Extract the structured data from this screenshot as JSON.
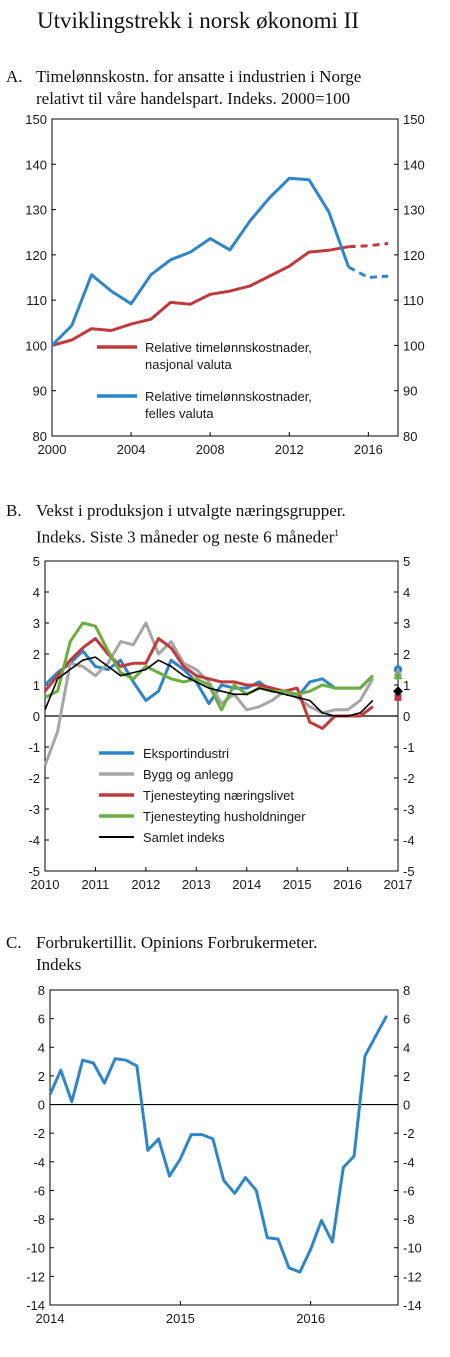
{
  "page_title": "Utviklingstrekk i norsk økonomi II",
  "colors": {
    "red": "#c0393b",
    "blue": "#2e86c9",
    "gray": "#a6a6a6",
    "green": "#6cae3e",
    "black": "#000000"
  },
  "chart_data": [
    {
      "id": "A",
      "type": "line",
      "letter": "A.",
      "title_line1": "Timelønnskostn. for ansatte i industrien i Norge",
      "title_line2": "relativt til våre handelspart. Indeks. 2000=100",
      "ylim": [
        80,
        150
      ],
      "yticks": [
        80,
        90,
        100,
        110,
        120,
        130,
        140,
        150
      ],
      "xlim": [
        2000,
        2017.5
      ],
      "xticks": [
        2000,
        2004,
        2008,
        2012,
        2016
      ],
      "legend": [
        "Relative timelønnskostnader, nasjonal valuta",
        "Relative timelønnskostnader, felles valuta"
      ],
      "legend_lines": [
        [
          "Relative timelønnskostnader,",
          "nasjonal valuta"
        ],
        [
          "Relative timelønnskostnader,",
          "felles valuta"
        ]
      ],
      "series": [
        {
          "name": "Relative timelønnskostnader, nasjonal valuta",
          "color": "red",
          "x": [
            2000,
            2001,
            2002,
            2003,
            2004,
            2005,
            2006,
            2007,
            2008,
            2009,
            2010,
            2011,
            2012,
            2013,
            2014,
            2015
          ],
          "values": [
            100,
            101.2,
            103.7,
            103.3,
            104.7,
            105.8,
            109.5,
            109.1,
            111.3,
            112,
            113.1,
            115.3,
            117.5,
            120.6,
            121,
            121.8
          ],
          "projection": {
            "x": [
              2015,
              2016,
              2017
            ],
            "values": [
              121.8,
              122,
              122.5
            ]
          }
        },
        {
          "name": "Relative timelønnskostnader, felles valuta",
          "color": "blue",
          "x": [
            2000,
            2001,
            2002,
            2003,
            2004,
            2005,
            2006,
            2007,
            2008,
            2009,
            2010,
            2011,
            2012,
            2013,
            2014,
            2015
          ],
          "values": [
            100,
            104.4,
            115.6,
            112,
            109.2,
            115.6,
            118.9,
            120.6,
            123.6,
            121.1,
            127.4,
            132.6,
            136.9,
            136.6,
            129.5,
            117.3
          ],
          "projection": {
            "x": [
              2015,
              2016,
              2017
            ],
            "values": [
              117.3,
              115,
              115.3
            ]
          }
        }
      ]
    },
    {
      "id": "B",
      "type": "line",
      "letter": "B.",
      "title_line1": "Vekst i produksjon i utvalgte næringsgrupper.",
      "title_line2": "Indeks. Siste 3 måneder og neste 6 måneder",
      "title_footnote": "1",
      "ylim": [
        -5,
        5
      ],
      "yticks": [
        -5,
        -4,
        -3,
        -2,
        -1,
        0,
        1,
        2,
        3,
        4,
        5
      ],
      "xlim": [
        2010,
        2017
      ],
      "xticks": [
        2010,
        2011,
        2012,
        2013,
        2014,
        2015,
        2016,
        2017
      ],
      "legend": [
        "Eksportindustri",
        "Bygg og anlegg",
        "Tjenesteyting næringslivet",
        "Tjenesteyting husholdninger",
        "Samlet indeks"
      ],
      "series": [
        {
          "name": "Eksportindustri",
          "color": "blue",
          "x": [
            2010,
            2010.25,
            2010.5,
            2010.75,
            2011,
            2011.25,
            2011.5,
            2011.75,
            2012,
            2012.25,
            2012.5,
            2012.75,
            2013,
            2013.25,
            2013.5,
            2013.75,
            2014,
            2014.25,
            2014.5,
            2014.75,
            2015,
            2015.25,
            2015.5,
            2015.75,
            2016,
            2016.25,
            2016.5
          ],
          "values": [
            1,
            1.4,
            1.7,
            2.1,
            1.6,
            1.5,
            1.8,
            1.1,
            0.5,
            0.8,
            1.8,
            1.5,
            1.1,
            0.4,
            1,
            0.9,
            0.9,
            1.1,
            0.8,
            0.8,
            0.6,
            1.1,
            1.2,
            0.9,
            0.9,
            0.9,
            1.3
          ],
          "marker": {
            "x": 2017,
            "value": 1.5
          }
        },
        {
          "name": "Bygg og anlegg",
          "color": "gray",
          "x": [
            2010,
            2010.25,
            2010.5,
            2010.75,
            2011,
            2011.25,
            2011.5,
            2011.75,
            2012,
            2012.25,
            2012.5,
            2012.75,
            2013,
            2013.25,
            2013.5,
            2013.75,
            2014,
            2014.25,
            2014.5,
            2014.75,
            2015,
            2015.25,
            2015.5,
            2015.75,
            2016,
            2016.25,
            2016.5
          ],
          "values": [
            -1.6,
            -0.5,
            1.7,
            1.6,
            1.3,
            1.7,
            2.4,
            2.3,
            3,
            2,
            2.4,
            1.7,
            1.5,
            1.1,
            0.4,
            0.7,
            0.2,
            0.3,
            0.5,
            0.8,
            0.6,
            0.3,
            0.1,
            0.2,
            0.2,
            0.5,
            1.2
          ],
          "marker": {
            "x": 2017,
            "value": 1.4
          }
        },
        {
          "name": "Tjenesteyting næringslivet",
          "color": "red",
          "x": [
            2010,
            2010.25,
            2010.5,
            2010.75,
            2011,
            2011.25,
            2011.5,
            2011.75,
            2012,
            2012.25,
            2012.5,
            2012.75,
            2013,
            2013.25,
            2013.5,
            2013.75,
            2014,
            2014.25,
            2014.5,
            2014.75,
            2015,
            2015.25,
            2015.5,
            2015.75,
            2016,
            2016.25,
            2016.5
          ],
          "values": [
            0.8,
            1.3,
            1.8,
            2.2,
            2.5,
            2,
            1.6,
            1.7,
            1.7,
            2.5,
            2.2,
            1.6,
            1.3,
            1.2,
            1.1,
            1.1,
            1,
            1,
            0.9,
            0.8,
            0.9,
            -0.2,
            -0.4,
            0,
            0,
            0,
            0.3
          ],
          "marker": {
            "x": 2017,
            "value": 0.6
          }
        },
        {
          "name": "Tjenesteyting husholdninger",
          "color": "green",
          "x": [
            2010,
            2010.25,
            2010.5,
            2010.75,
            2011,
            2011.25,
            2011.5,
            2011.75,
            2012,
            2012.25,
            2012.5,
            2012.75,
            2013,
            2013.25,
            2013.5,
            2013.75,
            2014,
            2014.25,
            2014.5,
            2014.75,
            2015,
            2015.25,
            2015.5,
            2015.75,
            2016,
            2016.25,
            2016.5
          ],
          "values": [
            0.6,
            0.8,
            2.4,
            3,
            2.9,
            2.1,
            1.4,
            1.2,
            1.6,
            1.4,
            1.2,
            1.1,
            1.2,
            1,
            0.2,
            1,
            0.7,
            0.9,
            0.8,
            0.8,
            0.7,
            0.8,
            1,
            0.9,
            0.9,
            0.9,
            1.3
          ],
          "marker": {
            "x": 2017,
            "value": 1.3
          }
        },
        {
          "name": "Samlet indeks",
          "color": "black",
          "x": [
            2010,
            2010.25,
            2010.5,
            2010.75,
            2011,
            2011.25,
            2011.5,
            2011.75,
            2012,
            2012.25,
            2012.5,
            2012.75,
            2013,
            2013.25,
            2013.5,
            2013.75,
            2014,
            2014.25,
            2014.5,
            2014.75,
            2015,
            2015.25,
            2015.5,
            2015.75,
            2016,
            2016.25,
            2016.5
          ],
          "values": [
            0.2,
            1.2,
            1.5,
            1.8,
            1.9,
            1.6,
            1.3,
            1.4,
            1.5,
            1.8,
            1.6,
            1.3,
            1.1,
            0.9,
            0.8,
            0.7,
            0.7,
            0.9,
            0.8,
            0.7,
            0.6,
            0.5,
            0.1,
            0,
            0,
            0.1,
            0.5
          ],
          "marker": {
            "x": 2017,
            "value": 0.8
          }
        }
      ]
    },
    {
      "id": "C",
      "type": "line",
      "letter": "C.",
      "title_line1": "Forbrukertillit. Opinions Forbrukermeter.",
      "title_line2": "Indeks",
      "ylim": [
        -14,
        8
      ],
      "yticks": [
        -14,
        -12,
        -10,
        -8,
        -6,
        -4,
        -2,
        0,
        2,
        4,
        6,
        8
      ],
      "xlim": [
        2014,
        2016.67
      ],
      "xticks": [
        2014,
        2015,
        2016
      ],
      "series": [
        {
          "name": "",
          "color": "blue",
          "x": [
            2014,
            2014.083,
            2014.167,
            2014.25,
            2014.333,
            2014.417,
            2014.5,
            2014.583,
            2014.667,
            2014.75,
            2014.833,
            2014.917,
            2015,
            2015.083,
            2015.167,
            2015.25,
            2015.333,
            2015.417,
            2015.5,
            2015.583,
            2015.667,
            2015.75,
            2015.833,
            2015.917,
            2016,
            2016.083,
            2016.167,
            2016.25,
            2016.333,
            2016.417,
            2016.5,
            2016.583
          ],
          "values": [
            0.7,
            2.4,
            0.2,
            3.1,
            2.9,
            1.5,
            3.2,
            3.1,
            2.7,
            -3.2,
            -2.4,
            -5,
            -3.8,
            -2.1,
            -2.1,
            -2.4,
            -5.3,
            -6.2,
            -5.1,
            -6,
            -9.3,
            -9.4,
            -11.4,
            -11.7,
            -10.1,
            -8.1,
            -9.6,
            -4.4,
            -3.6,
            3.4,
            4.8,
            6.2
          ]
        }
      ]
    }
  ]
}
